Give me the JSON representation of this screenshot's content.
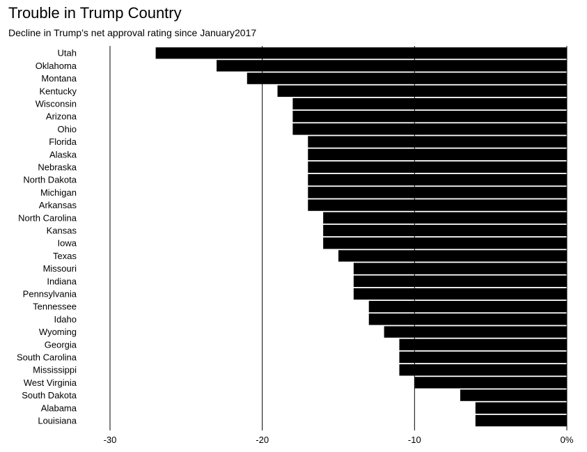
{
  "page": {
    "title": "Trouble in Trump Country",
    "subtitle": "Decline in Trump’s net approval rating since January2017"
  },
  "chart_data": {
    "type": "bar",
    "orientation": "horizontal",
    "title": "Trouble in Trump Country",
    "subtitle": "Decline in Trump’s net approval rating since January2017",
    "categories": [
      "Utah",
      "Oklahoma",
      "Montana",
      "Kentucky",
      "Wisconsin",
      "Arizona",
      "Ohio",
      "Florida",
      "Alaska",
      "Nebraska",
      "North Dakota",
      "Michigan",
      "Arkansas",
      "North Carolina",
      "Kansas",
      "Iowa",
      "Texas",
      "Missouri",
      "Indiana",
      "Pennsylvania",
      "Tennessee",
      "Idaho",
      "Wyoming",
      "Georgia",
      "South Carolina",
      "Mississippi",
      "West Virginia",
      "South Dakota",
      "Alabama",
      "Louisiana"
    ],
    "values": [
      -27,
      -23,
      -21,
      -19,
      -18,
      -18,
      -18,
      -17,
      -17,
      -17,
      -17,
      -17,
      -17,
      -16,
      -16,
      -16,
      -15,
      -14,
      -14,
      -14,
      -13,
      -13,
      -12,
      -11,
      -11,
      -11,
      -10,
      -7,
      -6,
      -6
    ],
    "xlim": [
      -30,
      0
    ],
    "xticks": [
      -30,
      -20,
      -10,
      0
    ],
    "xtick_labels": [
      "-30",
      "-20",
      "-10",
      "0%"
    ],
    "bar_color": "#000000",
    "grid": true,
    "xlabel": "",
    "ylabel": ""
  }
}
